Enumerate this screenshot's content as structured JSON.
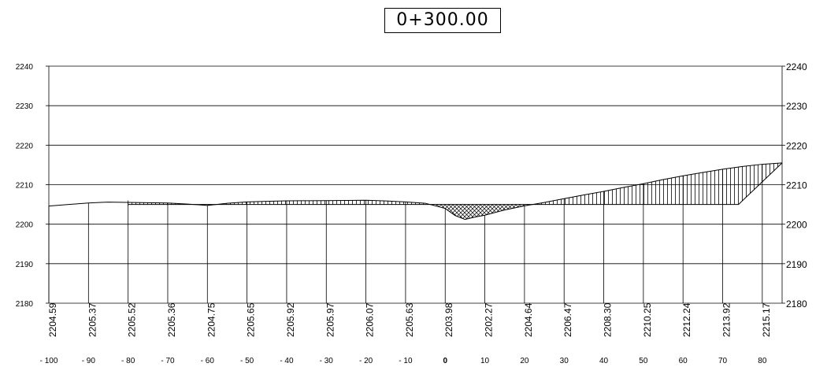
{
  "chart_data": {
    "type": "line",
    "title": "0+300.00",
    "xlabel": "",
    "ylabel": "",
    "xlim": [
      -100,
      85
    ],
    "ylim": [
      2180,
      2240
    ],
    "y_ticks": [
      2180,
      2190,
      2200,
      2210,
      2220,
      2230,
      2240
    ],
    "y_tick_labels": [
      "2180",
      "2190",
      "2200",
      "2210",
      "2220",
      "2230",
      "2240"
    ],
    "x_ticks": [
      -100,
      -90,
      -80,
      -70,
      -60,
      -50,
      -40,
      -30,
      -20,
      -10,
      0,
      10,
      20,
      30,
      40,
      50,
      60,
      70,
      80
    ],
    "x_tick_labels": [
      "- 100",
      "- 90",
      "- 80",
      "- 70",
      "- 60",
      "- 50",
      "- 40",
      "- 30",
      "- 20",
      "- 10",
      "0",
      "10",
      "20",
      "30",
      "40",
      "50",
      "60",
      "70",
      "80"
    ],
    "elevation_stations": [
      -100,
      -90,
      -80,
      -70,
      -60,
      -50,
      -40,
      -30,
      -20,
      -10,
      0,
      10,
      20,
      30,
      40,
      50,
      60,
      70,
      80
    ],
    "elevation_labels": [
      "2204.59",
      "2205.37",
      "2205.52",
      "2205.36",
      "2204.75",
      "2205.65",
      "2205.92",
      "2205.97",
      "2206.07",
      "2205.63",
      "2203.98",
      "2202.27",
      "2204.64",
      "2206.47",
      "2208.30",
      "2210.25",
      "2212.24",
      "2213.92",
      "2215.17"
    ],
    "grid": true,
    "series": [
      {
        "role": "ground",
        "x": [
          -100,
          -95,
          -90,
          -85,
          -80,
          -75,
          -70,
          -65,
          -60,
          -55,
          -50,
          -45,
          -40,
          -35,
          -30,
          -25,
          -20,
          -15,
          -10,
          -5,
          0,
          2.5,
          5,
          7.5,
          10,
          15,
          20,
          25,
          30,
          35,
          40,
          45,
          50,
          55,
          60,
          65,
          70,
          75,
          80,
          85
        ],
        "y": [
          2204.59,
          2205.0,
          2205.37,
          2205.6,
          2205.52,
          2205.45,
          2205.36,
          2205.1,
          2204.75,
          2205.3,
          2205.65,
          2205.8,
          2205.92,
          2205.95,
          2205.97,
          2206.02,
          2206.07,
          2205.9,
          2205.63,
          2205.3,
          2203.98,
          2202.2,
          2201.2,
          2201.8,
          2202.27,
          2203.6,
          2204.64,
          2205.5,
          2206.47,
          2207.4,
          2208.3,
          2209.3,
          2210.25,
          2211.3,
          2212.24,
          2213.1,
          2213.92,
          2214.6,
          2215.17,
          2215.5
        ]
      },
      {
        "role": "design",
        "x": [
          -80,
          0,
          20,
          74,
          85
        ],
        "y": [
          2205.0,
          2205.0,
          2205.0,
          2205.0,
          2215.5
        ]
      }
    ]
  }
}
